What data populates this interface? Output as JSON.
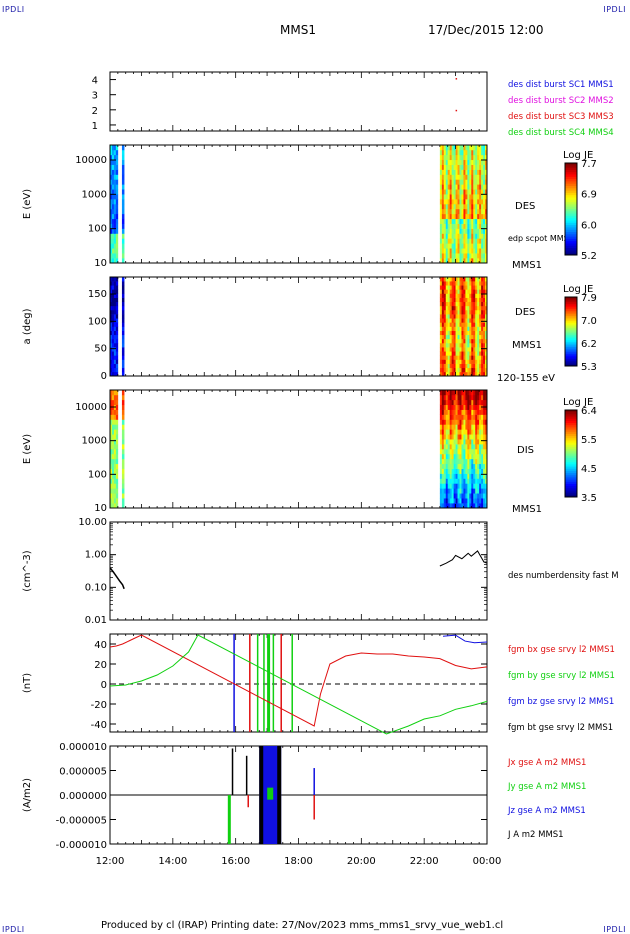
{
  "corners": {
    "tl": "IPDLI",
    "tr": "IPDLI",
    "bl": "IPDLI",
    "br": "IPDLI"
  },
  "header": {
    "title": "MMS1",
    "date": "17/Dec/2015 12:00"
  },
  "footer": {
    "text": "Produced by cl (IRAP)   Printing date: 27/Nov/2023   mms_mms1_srvy_vue_web1.cl"
  },
  "colors": {
    "red": "#e01010",
    "green": "#10d010",
    "blue": "#1010e0",
    "magenta": "#e010e0",
    "black": "#000000"
  },
  "chart_data": [
    {
      "type": "scatter",
      "name": "burst-indicator",
      "yticks": [
        "1",
        "2",
        "3",
        "4"
      ],
      "ylim": [
        0.6,
        4.5
      ],
      "legend": [
        {
          "text": "des dist burst SC1 MMS1",
          "color": "#1010e0"
        },
        {
          "text": "des dist burst SC2 MMS2",
          "color": "#e010e0"
        },
        {
          "text": "des dist burst SC3 MMS3",
          "color": "#e01010"
        },
        {
          "text": "des dist burst SC4 MMS4",
          "color": "#10d010"
        }
      ],
      "points": [
        {
          "x": 23.0,
          "y": 2
        },
        {
          "x": 23.0,
          "y": 4.1
        }
      ]
    },
    {
      "type": "heatmap",
      "name": "des-energy",
      "ylabel": "E (eV)",
      "yticks": [
        "10",
        "100",
        "1000",
        "10000"
      ],
      "side_labels": [
        "DES",
        "edp scpot MMS1",
        "MMS1"
      ],
      "colorbar": {
        "title": "Log JE",
        "ticks": [
          "7.7",
          "6.9",
          "6.0",
          "5.2"
        ]
      },
      "data_intervals": [
        [
          12.0,
          12.25
        ],
        [
          12.38,
          12.45
        ],
        [
          22.5,
          24.0
        ]
      ]
    },
    {
      "type": "heatmap",
      "name": "des-pitch",
      "ylabel": "a (deg)",
      "yticks": [
        "0",
        "50",
        "100",
        "150"
      ],
      "side_labels": [
        "DES",
        "MMS1",
        "120-155 eV"
      ],
      "colorbar": {
        "title": "Log JE",
        "ticks": [
          "7.9",
          "7.0",
          "6.2",
          "5.3"
        ]
      },
      "data_intervals": [
        [
          12.0,
          12.25
        ],
        [
          12.38,
          12.45
        ],
        [
          22.5,
          24.0
        ]
      ]
    },
    {
      "type": "heatmap",
      "name": "dis-energy",
      "ylabel": "E (eV)",
      "yticks": [
        "10",
        "100",
        "1000",
        "10000"
      ],
      "side_labels": [
        "DIS",
        "MMS1"
      ],
      "colorbar": {
        "title": "Log JE",
        "ticks": [
          "6.4",
          "5.5",
          "4.5",
          "3.5"
        ]
      },
      "data_intervals": [
        [
          12.0,
          12.25
        ],
        [
          12.38,
          12.45
        ],
        [
          22.5,
          24.0
        ]
      ]
    },
    {
      "type": "line",
      "name": "density",
      "ylabel": "(cm^-3)",
      "yticks": [
        "0.01",
        "0.10",
        "1.00",
        "10.00"
      ],
      "ylim": [
        0.01,
        10
      ],
      "yscale": "log",
      "series": [
        {
          "name": "des numberdensity fast M",
          "color": "#000000",
          "x": [
            12.0,
            12.1,
            12.2,
            12.3,
            12.4,
            12.45,
            22.5,
            22.7,
            22.9,
            23.0,
            23.2,
            23.4,
            23.5,
            23.7,
            23.9,
            24.0
          ],
          "y": [
            0.4,
            0.3,
            0.22,
            0.16,
            0.12,
            0.09,
            0.45,
            0.55,
            0.7,
            0.95,
            0.75,
            1.1,
            0.9,
            1.3,
            0.6,
            0.55
          ]
        }
      ]
    },
    {
      "type": "line",
      "name": "magnetic-field",
      "ylabel": "(nT)",
      "yticks": [
        "-40",
        "-20",
        "0",
        "20",
        "40"
      ],
      "ylim": [
        -48,
        50
      ],
      "series": [
        {
          "name": "fgm bx gse srvy l2 MMS1",
          "color": "#e01010",
          "x": [
            12.0,
            12.2,
            12.4,
            12.6,
            12.8,
            13.0,
            18.5,
            18.7,
            19.0,
            19.5,
            20.0,
            20.5,
            21.0,
            21.5,
            22.0,
            22.5,
            23.0,
            23.5,
            24.0
          ],
          "y": [
            37,
            38,
            40,
            43,
            46,
            49,
            -42,
            -10,
            20,
            28,
            31,
            30,
            30,
            28,
            27,
            24,
            20,
            16,
            15
          ]
        },
        {
          "name": "fgm by gse srvy l2 MMS1",
          "color": "#10d010",
          "x": [
            12.0,
            12.5,
            13.0,
            13.5,
            14.0,
            14.5,
            14.8,
            20.8,
            21.5,
            22.0,
            22.5,
            23.0,
            23.5,
            24.0
          ],
          "y": [
            -2,
            -1,
            3,
            9,
            18,
            32,
            49,
            -50,
            -42,
            -35,
            -30,
            -25,
            -20,
            -18
          ]
        },
        {
          "name": "fgm bz gse srvy l2 MMS1",
          "color": "#1010e0",
          "x": [
            22.6,
            23.0,
            23.3,
            23.6,
            24.0
          ],
          "y": [
            49,
            47,
            45,
            43,
            42
          ]
        },
        {
          "name": "fgm bt gse srvy l2 MMS1",
          "color": "#000000",
          "x": [],
          "y": []
        }
      ]
    },
    {
      "type": "line",
      "name": "current-density",
      "ylabel": "(A/m2)",
      "yticks": [
        "-0.000010",
        "-0.000005",
        "0.000000",
        "0.000005",
        "0.000010"
      ],
      "ylim": [
        -1e-05,
        1e-05
      ],
      "series": [
        {
          "name": "Jx gse A m2 MMS1",
          "color": "#e01010"
        },
        {
          "name": "Jy gse A m2 MMS1",
          "color": "#10d010"
        },
        {
          "name": "Jz gse A m2 MMS1",
          "color": "#1010e0"
        },
        {
          "name": "J A m2 MMS1",
          "color": "#000000"
        }
      ],
      "spikes": [
        {
          "x": 15.9,
          "color": "#000000",
          "y": 9.5e-06
        },
        {
          "x": 16.35,
          "color": "#000000",
          "y": 8e-06
        },
        {
          "x": 16.4,
          "color": "#e01010",
          "y": -2.5e-06
        },
        {
          "x": 18.5,
          "color": "#e01010",
          "y": -5e-06
        },
        {
          "x": 18.5,
          "color": "#1010e0",
          "y": 5.5e-06
        }
      ],
      "active_band": [
        16.75,
        17.45
      ]
    }
  ],
  "xaxis": {
    "ticks": [
      "12:00",
      "14:00",
      "16:00",
      "18:00",
      "20:00",
      "22:00",
      "00:00"
    ],
    "range_hours": [
      12,
      24
    ]
  }
}
